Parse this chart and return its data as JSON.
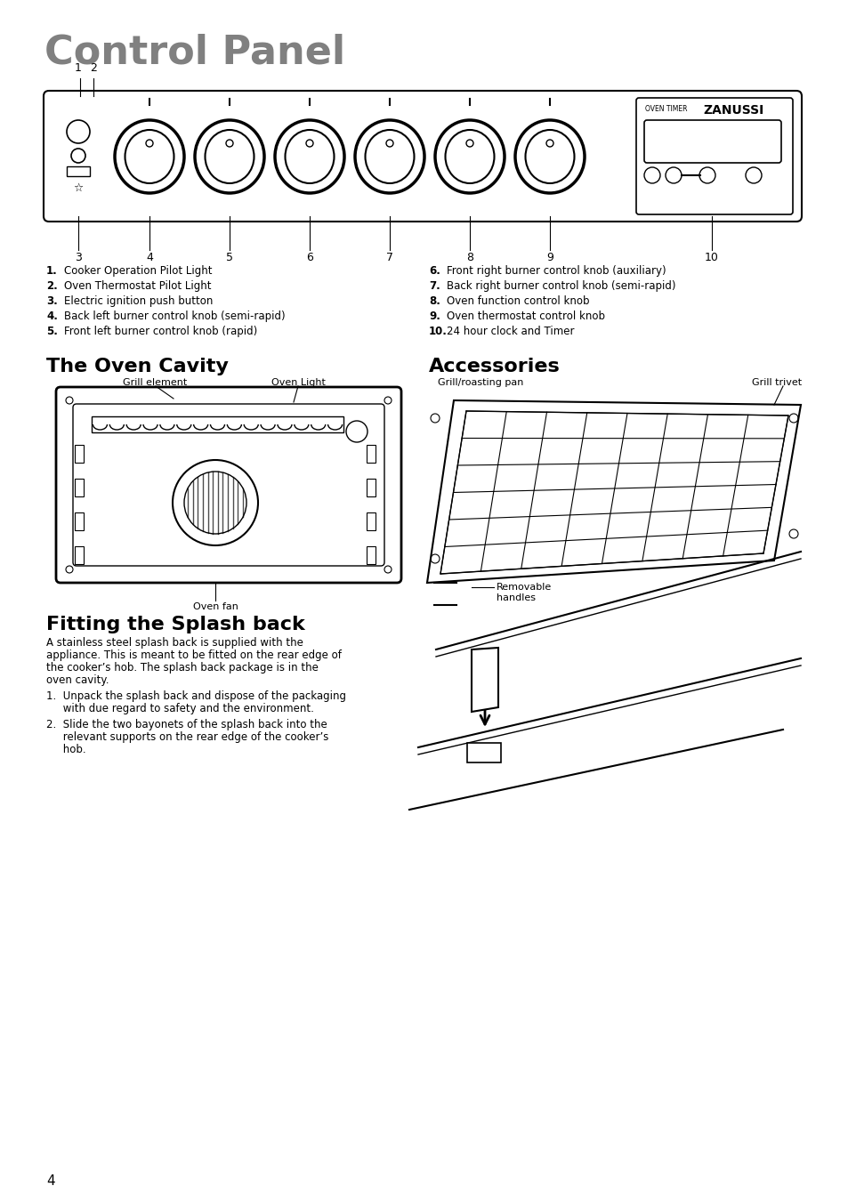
{
  "bg_color": "#ffffff",
  "title": "Control Panel",
  "title_color": "#808080",
  "title_fontsize": 32,
  "section2_title": "The Oven Cavity",
  "section3_title": "Accessories",
  "section4_title": "Fitting the Splash back",
  "section_title_fontsize": 16,
  "body_fontsize": 8.5,
  "label_fontsize": 8,
  "items_left": [
    [
      "1.",
      "Cooker Operation Pilot Light"
    ],
    [
      "2.",
      "Oven Thermostat Pilot Light"
    ],
    [
      "3.",
      "Electric ignition push button"
    ],
    [
      "4.",
      "Back left burner control knob (semi-rapid)"
    ],
    [
      "5.",
      "Front left burner control knob (rapid)"
    ]
  ],
  "items_right": [
    [
      "6.",
      "Front right burner control knob (auxiliary)"
    ],
    [
      "7.",
      "Back right burner control knob (semi-rapid)"
    ],
    [
      "8.",
      "Oven function control knob"
    ],
    [
      "9.",
      "Oven thermostat control knob"
    ],
    [
      "10.",
      "24 hour clock and Timer"
    ]
  ],
  "splash_para": "A stainless steel splash back is supplied with the appliance. This is meant to be fitted on the rear edge of the cooker’s hob. The splash back package is in the oven cavity.",
  "splash_step1_a": "1.  Unpack the splash back and dispose of the packaging",
  "splash_step1_b": "     with due regard to safety and the environment.",
  "splash_step2_a": "2.  Slide the two bayonets of the splash back into the",
  "splash_step2_b": "     relevant supports on the rear edge of the cooker’s",
  "splash_step2_c": "     hob.",
  "page_number": "4"
}
